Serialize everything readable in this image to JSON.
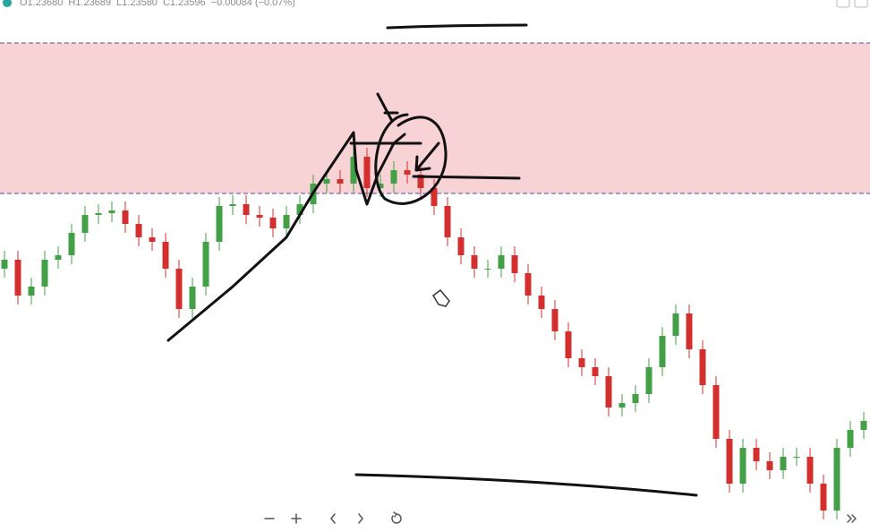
{
  "chart_data": {
    "type": "candlestick",
    "header": [
      "O1.23680",
      "H1.23689",
      "L1.23580",
      "C1.23596",
      "−0.00084 (−0.07%)"
    ],
    "ylim": [
      1.234,
      1.24
    ],
    "zone": [
      1.23784,
      1.23952
    ],
    "up_color": "#43a047",
    "down_color": "#d32f2f",
    "zone_color": "#f7d3d6",
    "open": [
      1.237,
      1.2371,
      1.2367,
      1.2368,
      1.2371,
      1.23715,
      1.2374,
      1.2376,
      1.23762,
      1.23765,
      1.2375,
      1.23735,
      1.2373,
      1.237,
      1.23655,
      1.2368,
      1.2373,
      1.2377,
      1.23772,
      1.2376,
      1.23757,
      1.23745,
      1.2376,
      1.23772,
      1.23795,
      1.238,
      1.23795,
      1.23825,
      1.2379,
      1.23795,
      1.2381,
      1.23805,
      1.2379,
      1.2377,
      1.23735,
      1.23715,
      1.237,
      1.237,
      1.23715,
      1.23695,
      1.2367,
      1.23655,
      1.2363,
      1.236,
      1.2359,
      1.2358,
      1.23545,
      1.2355,
      1.2356,
      1.2359,
      1.23625,
      1.2365,
      1.2361,
      1.2357,
      1.2351,
      1.2346,
      1.235,
      1.23485,
      1.23475,
      1.2349,
      1.2349,
      1.2346,
      1.2343,
      1.235,
      1.2352
    ],
    "high": [
      1.2372,
      1.2372,
      1.2369,
      1.2372,
      1.23725,
      1.2375,
      1.2377,
      1.23772,
      1.23775,
      1.23775,
      1.2376,
      1.23745,
      1.2374,
      1.2371,
      1.2369,
      1.2374,
      1.2378,
      1.23782,
      1.23782,
      1.2377,
      1.23767,
      1.2377,
      1.23782,
      1.23805,
      1.2381,
      1.2381,
      1.23835,
      1.23835,
      1.23805,
      1.2382,
      1.2382,
      1.23815,
      1.238,
      1.2378,
      1.23745,
      1.23725,
      1.2371,
      1.23725,
      1.23725,
      1.23705,
      1.2368,
      1.23665,
      1.2364,
      1.2361,
      1.236,
      1.2359,
      1.2356,
      1.2357,
      1.236,
      1.23635,
      1.2366,
      1.2366,
      1.2362,
      1.2358,
      1.2352,
      1.2351,
      1.2351,
      1.23495,
      1.235,
      1.235,
      1.235,
      1.2347,
      1.2351,
      1.2353,
      1.2354
    ],
    "low": [
      1.2369,
      1.2366,
      1.2366,
      1.2367,
      1.237,
      1.23705,
      1.2373,
      1.2375,
      1.23752,
      1.2374,
      1.23725,
      1.2372,
      1.2369,
      1.23645,
      1.23645,
      1.2367,
      1.2372,
      1.2376,
      1.2375,
      1.23747,
      1.23735,
      1.23735,
      1.2375,
      1.23762,
      1.23785,
      1.23785,
      1.23785,
      1.2378,
      1.2378,
      1.23785,
      1.23795,
      1.2378,
      1.2376,
      1.23725,
      1.23705,
      1.2369,
      1.2369,
      1.2369,
      1.23685,
      1.2366,
      1.23645,
      1.2362,
      1.2359,
      1.2358,
      1.2357,
      1.23535,
      1.23535,
      1.2354,
      1.2355,
      1.2358,
      1.23615,
      1.236,
      1.2356,
      1.235,
      1.2345,
      1.2345,
      1.23475,
      1.23465,
      1.23465,
      1.2348,
      1.2345,
      1.2342,
      1.2342,
      1.2349,
      1.2351
    ],
    "close": [
      1.2371,
      1.2367,
      1.2368,
      1.2371,
      1.23715,
      1.2374,
      1.2376,
      1.23762,
      1.23765,
      1.2375,
      1.23735,
      1.2373,
      1.237,
      1.23655,
      1.2368,
      1.2373,
      1.2377,
      1.23772,
      1.2376,
      1.23757,
      1.23745,
      1.2376,
      1.23772,
      1.23795,
      1.238,
      1.23795,
      1.23825,
      1.2379,
      1.23795,
      1.2381,
      1.23805,
      1.2379,
      1.2377,
      1.23735,
      1.23715,
      1.237,
      1.237,
      1.23715,
      1.23695,
      1.2367,
      1.23655,
      1.2363,
      1.236,
      1.2359,
      1.2358,
      1.23545,
      1.2355,
      1.2356,
      1.2359,
      1.23625,
      1.2365,
      1.2361,
      1.2357,
      1.2351,
      1.2346,
      1.235,
      1.23485,
      1.23475,
      1.2349,
      1.2349,
      1.2346,
      1.2343,
      1.235,
      1.2352,
      1.2353
    ]
  }
}
